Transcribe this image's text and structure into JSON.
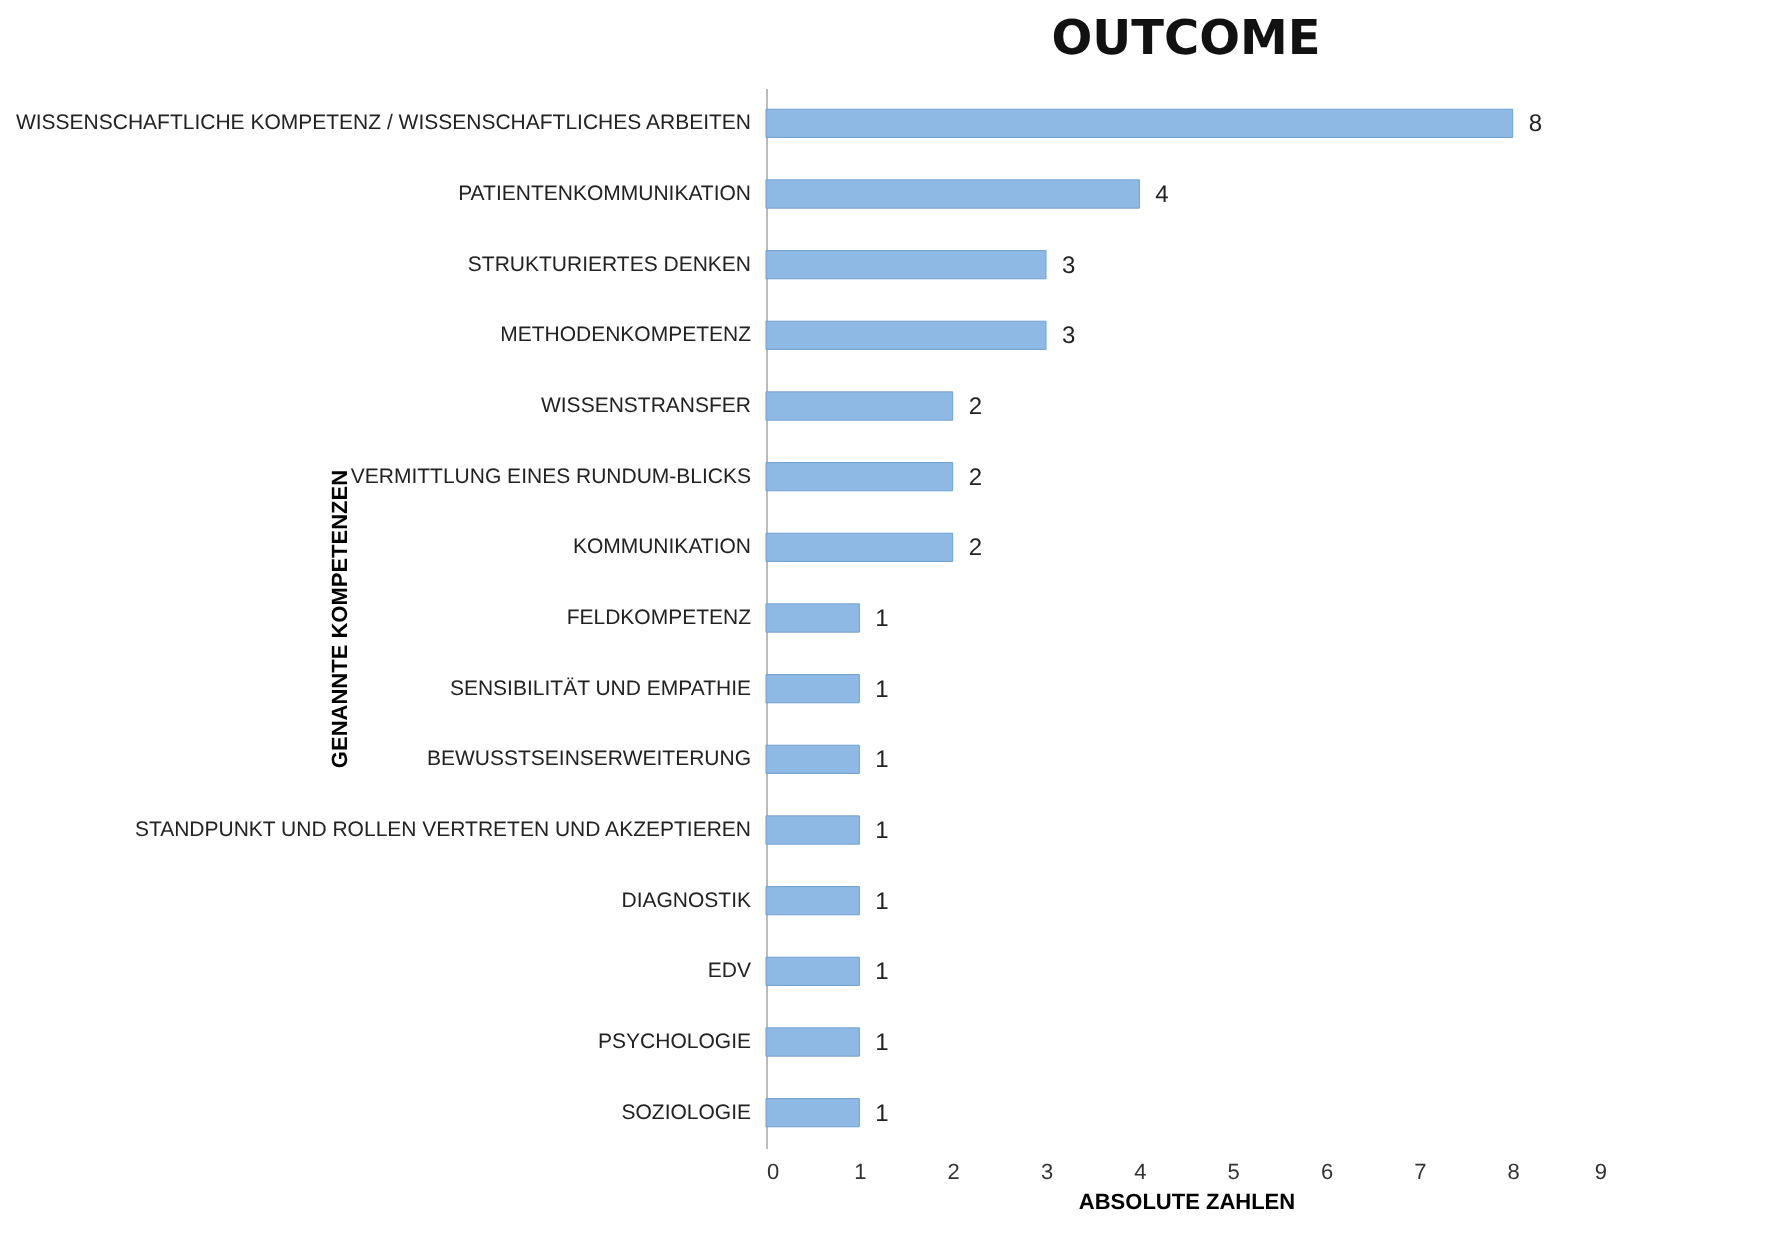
{
  "chart_data": {
    "type": "bar",
    "orientation": "horizontal",
    "title": "OUTCOME",
    "xlabel": "ABSOLUTE ZAHLEN",
    "ylabel": "GENANNTE KOMPETENZEN",
    "categories": [
      "WISSENSCHAFTLICHE KOMPETENZ / WISSENSCHAFTLICHES ARBEITEN",
      "PATIENTENKOMMUNIKATION",
      "STRUKTURIERTES DENKEN",
      "METHODENKOMPETENZ",
      "WISSENSTRANSFER",
      "VERMITTLUNG EINES RUNDUM-BLICKS",
      "KOMMUNIKATION",
      "FELDKOMPETENZ",
      "SENSIBILITÄT UND EMPATHIE",
      "BEWUSSTSEINSERWEITERUNG",
      "STANDPUNKT UND ROLLEN VERTRETEN UND AKZEPTIEREN",
      "DIAGNOSTIK",
      "EDV",
      "PSYCHOLOGIE",
      "SOZIOLOGIE"
    ],
    "values": [
      8,
      4,
      3,
      3,
      2,
      2,
      2,
      1,
      1,
      1,
      1,
      1,
      1,
      1,
      1
    ],
    "color": "#8db9e4",
    "xlim": [
      0,
      9
    ],
    "xticks": [
      0,
      1,
      2,
      3,
      4,
      5,
      6,
      7,
      8,
      9
    ],
    "data_labels": true,
    "grid": false
  }
}
